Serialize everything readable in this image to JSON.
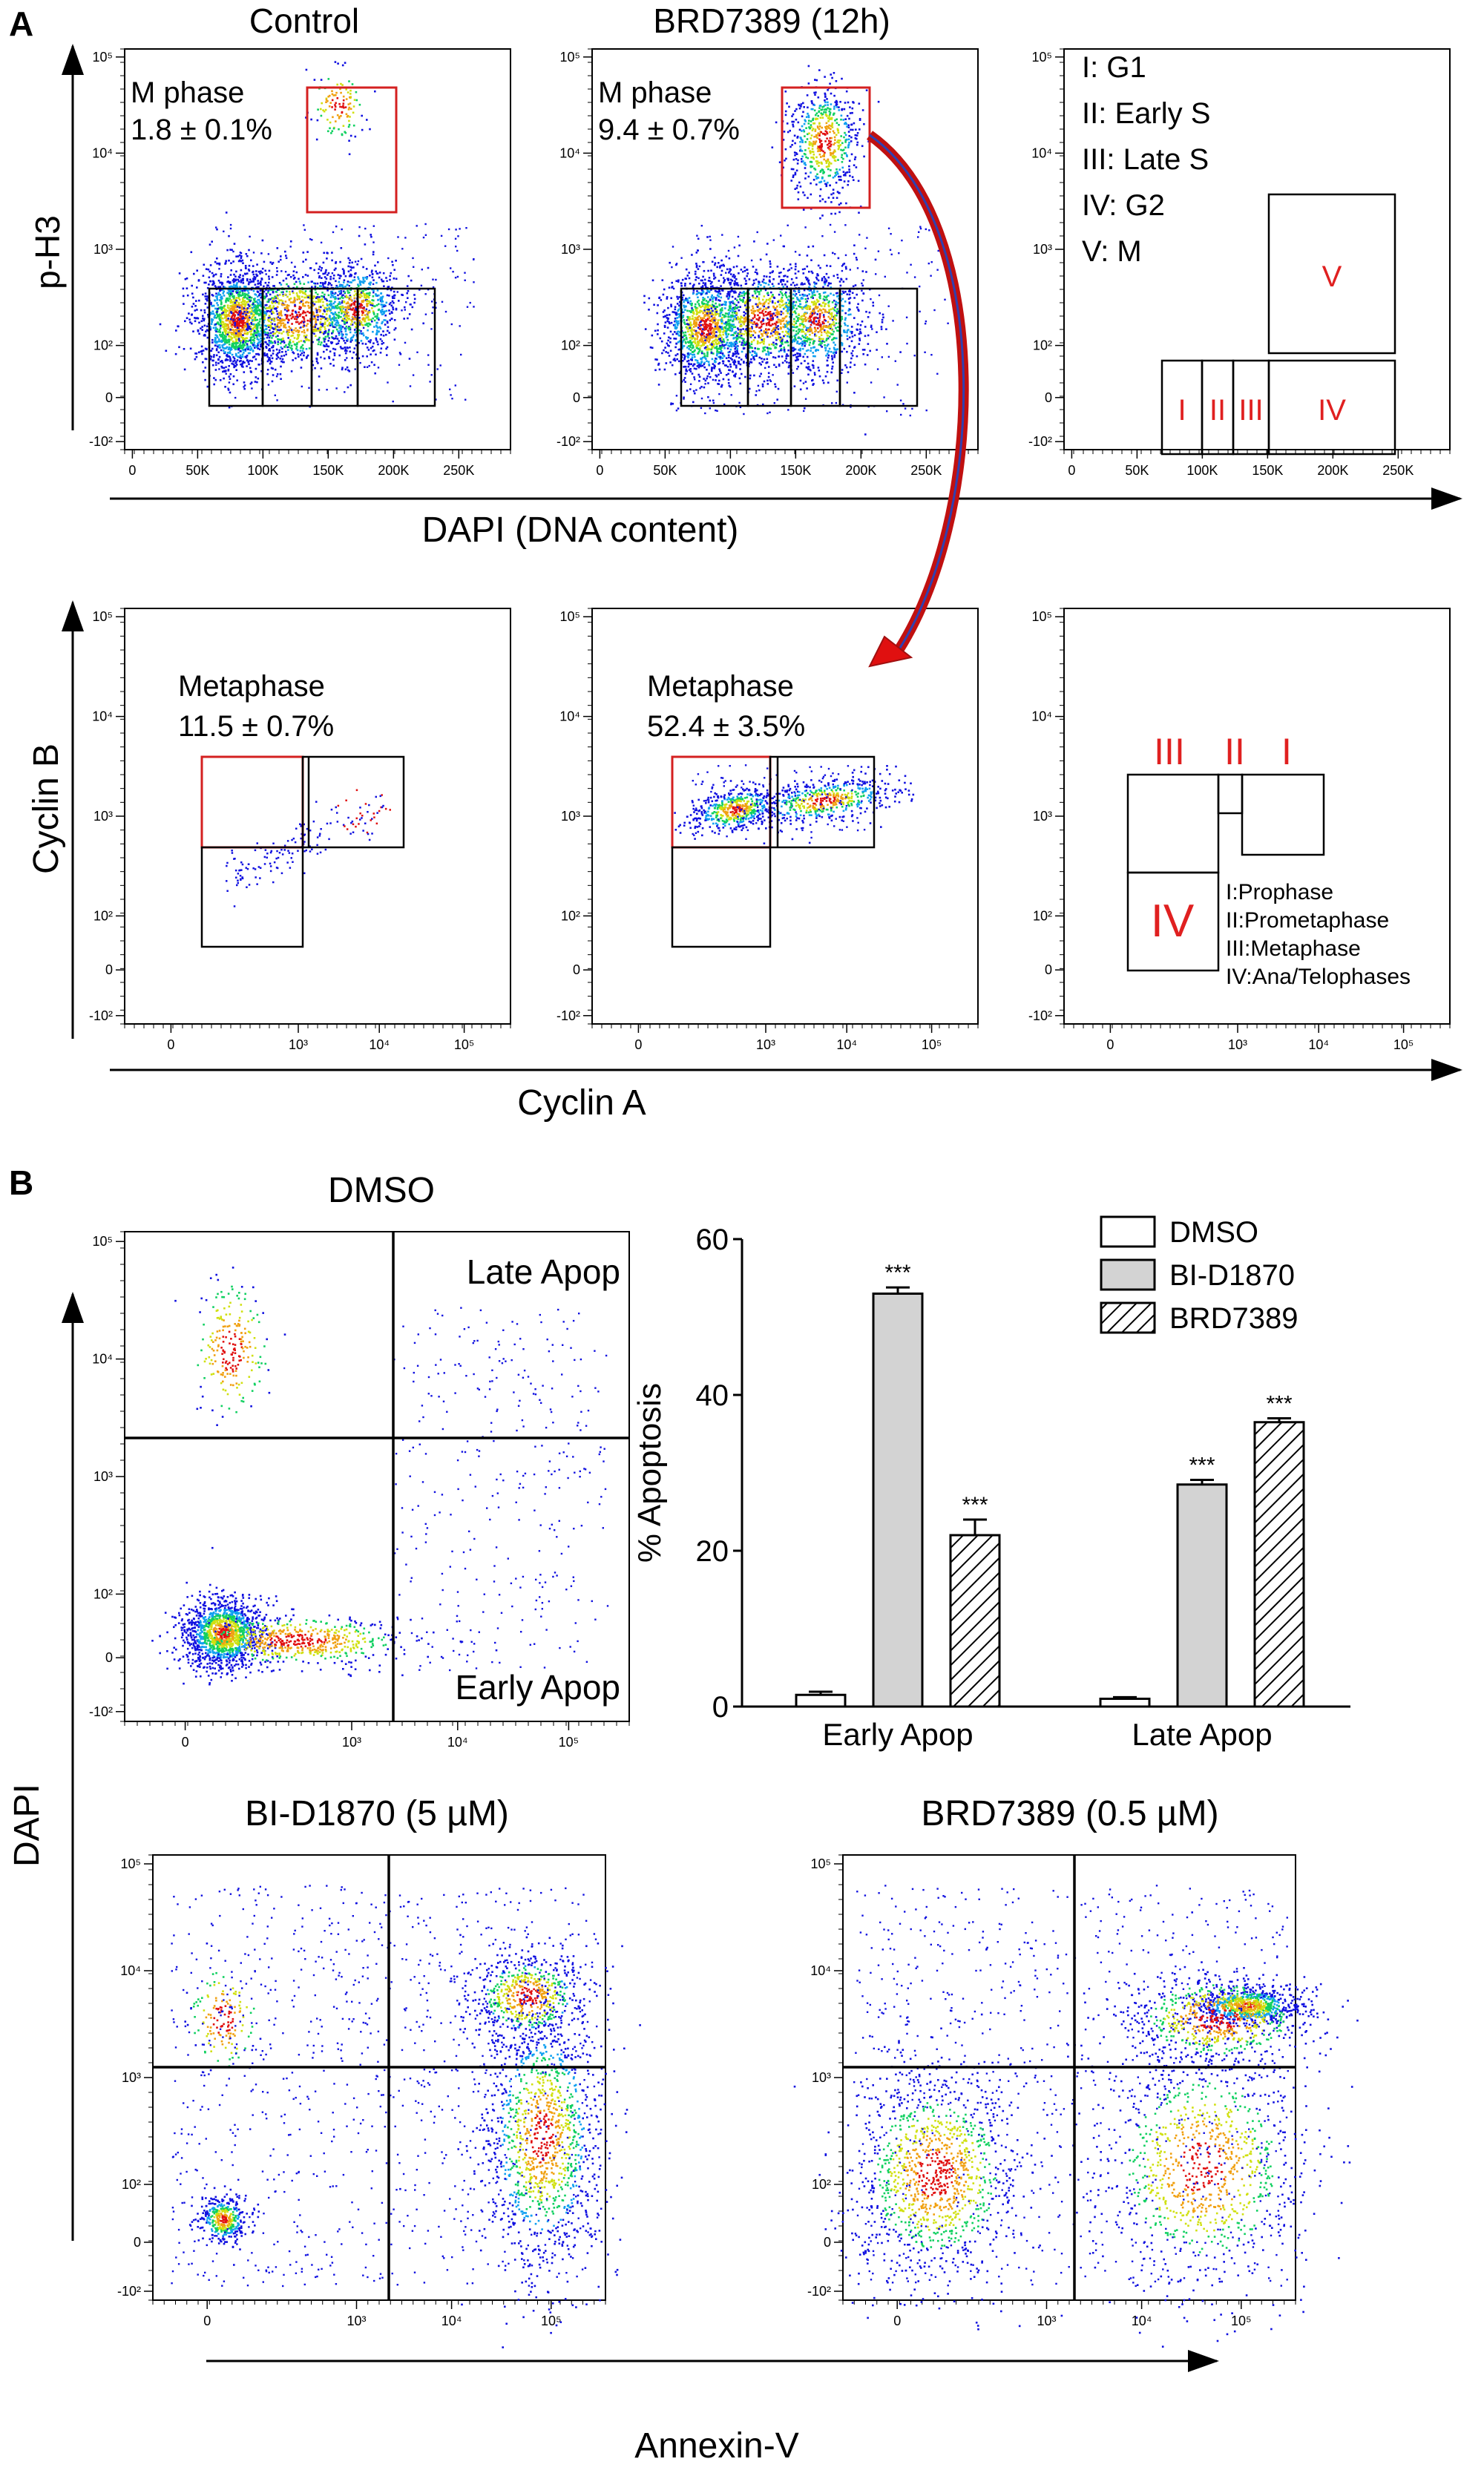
{
  "panels": {
    "A": {
      "label": "A",
      "top_titles": [
        "Control",
        "BRD7389 (12h)"
      ],
      "top_ylabel": "p-H3",
      "top_xlabel": "DAPI (DNA content)",
      "bottom_ylabel": "Cyclin B",
      "bottom_xlabel": "Cyclin A",
      "mphase_label": "M phase",
      "mphase_values": [
        "1.8 ± 0.1%",
        "9.4 ± 0.7%"
      ],
      "metaphase_label": "Metaphase",
      "metaphase_values": [
        "11.5 ± 0.7%",
        "52.4 ± 3.5%"
      ],
      "cellcycle_legend": [
        "I: G1",
        "II: Early S",
        "III: Late S",
        "IV: G2",
        "V: M"
      ],
      "cellcycle_gates": [
        "I",
        "II",
        "III",
        "IV",
        "V"
      ],
      "mitosis_gates": [
        "III",
        "II",
        "I",
        "IV"
      ],
      "mitosis_legend": [
        "I:Prophase",
        "II:Prometaphase",
        "III:Metaphase",
        "IV:Ana/Telophases"
      ],
      "dapi_ticks": [
        "0",
        "50K",
        "100K",
        "150K",
        "200K",
        "250K"
      ],
      "log_y_ticks": [
        "10⁵",
        "10⁴",
        "10³",
        "10²",
        "0",
        "-10²"
      ],
      "log_x_ticks": [
        "0",
        "10³",
        "10⁴",
        "10⁵"
      ]
    },
    "B": {
      "label": "B",
      "scatter_titles": [
        "DMSO",
        "BI-D1870 (5 µM)",
        "BRD7389 (0.5 µM)"
      ],
      "quadrant_labels": [
        "Late Apop",
        "Early Apop"
      ],
      "ylabel": "DAPI",
      "xlabel": "Annexin-V",
      "log_y_ticks": [
        "10⁵",
        "10⁴",
        "10³",
        "10²",
        "0",
        "-10²"
      ],
      "log_x_ticks": [
        "0",
        "10³",
        "10⁴",
        "10⁵"
      ]
    }
  },
  "chart_data": [
    {
      "type": "bar",
      "categories": [
        "Early Apop",
        "Late Apop"
      ],
      "series": [
        {
          "name": "DMSO",
          "values": [
            1.5,
            1.0
          ],
          "errors": [
            0.4,
            0.2
          ],
          "significance": [
            "",
            ""
          ],
          "fill": "#ffffff"
        },
        {
          "name": "BI-D1870",
          "values": [
            53.0,
            28.5
          ],
          "errors": [
            0.8,
            0.6
          ],
          "significance": [
            "***",
            "***"
          ],
          "fill": "#d3d3d3"
        },
        {
          "name": "BRD7389",
          "values": [
            22.0,
            36.5
          ],
          "errors": [
            2.0,
            0.5
          ],
          "significance": [
            "***",
            "***"
          ],
          "fill": "hatch"
        }
      ],
      "ylabel": "% Apoptosis",
      "xlabel": "",
      "ylim": [
        0,
        60
      ],
      "yticks": [
        0,
        20,
        40,
        60
      ],
      "grid": false,
      "legend": "top-right"
    }
  ],
  "colors": {
    "gate_red": "#d42020",
    "gate_black": "#000000",
    "gate_label_red": "#e02020",
    "arrow_red": "#e01010",
    "density_low": "#1010e0",
    "density_mid": "#10d060",
    "density_high": "#e01010"
  }
}
